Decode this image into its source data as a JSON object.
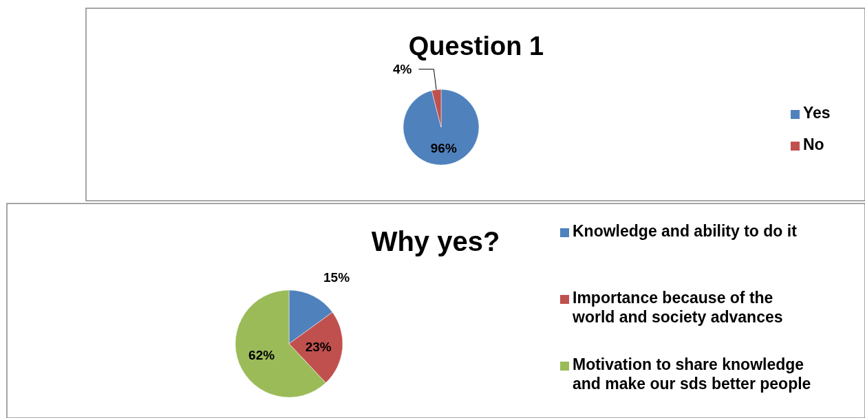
{
  "chart_data": [
    {
      "type": "pie",
      "title": "Question 1",
      "categories": [
        "Yes",
        "No"
      ],
      "values": [
        96,
        4
      ],
      "colors": [
        "#4f81bd",
        "#c0504d"
      ],
      "value_labels": [
        "96%",
        "4%"
      ],
      "legend": "right"
    },
    {
      "type": "pie",
      "title": "Why yes?",
      "categories": [
        "Knowledge and ability to do it",
        "Importance because of the world and society advances",
        "Motivation to share knowledge and make our sds better people"
      ],
      "values": [
        15,
        23,
        62
      ],
      "colors": [
        "#4f81bd",
        "#c0504d",
        "#9bbb59"
      ],
      "value_labels": [
        "15%",
        "23%",
        "62%"
      ],
      "legend": "top right"
    }
  ]
}
